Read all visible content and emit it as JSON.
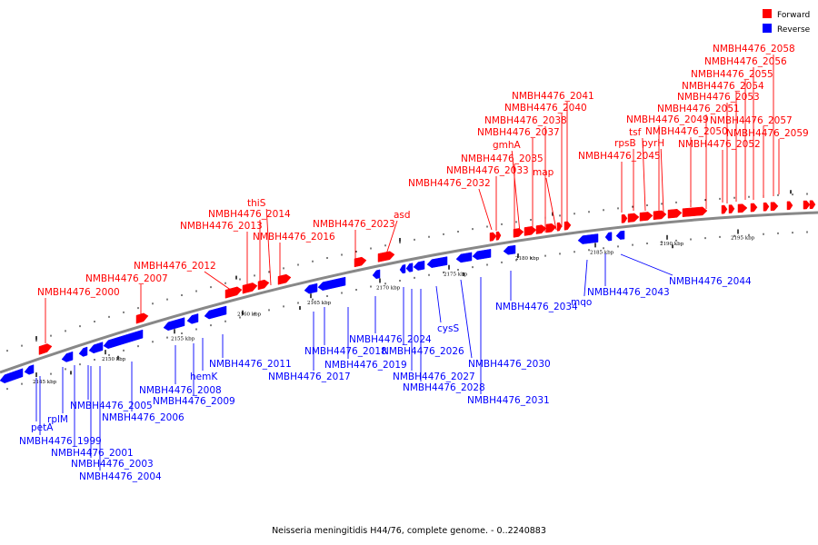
{
  "legend": [
    {
      "name": "Forward",
      "color": "#ff0000"
    },
    {
      "name": "Reverse",
      "color": "#0000ff"
    }
  ],
  "colors": {
    "forward": "#ff0000",
    "reverse": "#0000ff",
    "backbone": "#888888"
  },
  "caption": "Neisseria meningitidis H44/76, complete genome. - 0..2240883",
  "tick_labels": [
    "2145 kbp",
    "2150 kbp",
    "2155 kbp",
    "2160 kbp",
    "2165 kbp",
    "2170 kbp",
    "2175 kbp",
    "2180 kbp",
    "2185 kbp",
    "2190 kbp",
    "2195 kbp"
  ],
  "forward_labels": [
    "NMBH4476_2000",
    "NMBH4476_2007",
    "NMBH4476_2012",
    "NMBH4476_2013",
    "NMBH4476_2014",
    "thiS",
    "NMBH4476_2016",
    "NMBH4476_2023",
    "asd",
    "NMBH4476_2032",
    "NMBH4476_2033",
    "NMBH4476_2035",
    "gmhA",
    "NMBH4476_2037",
    "NMBH4476_2038",
    "map",
    "NMBH4476_2040",
    "NMBH4476_2041",
    "NMBH4476_2045",
    "rpsB",
    "tsf",
    "NMBH4476_2049",
    "pyrH",
    "NMBH4476_2050",
    "NMBH4476_2051",
    "NMBH4476_2052",
    "NMBH4476_2053",
    "NMBH4476_2054",
    "NMBH4476_2055",
    "NMBH4476_2056",
    "NMBH4476_2057",
    "NMBH4476_2058",
    "NMBH4476_2059"
  ],
  "reverse_labels": [
    "petA",
    "NMBH4476_1999",
    "rplM",
    "NMBH4476_2001",
    "NMBH4476_2003",
    "NMBH4476_2004",
    "NMBH4476_2005",
    "NMBH4476_2006",
    "NMBH4476_2008",
    "NMBH4476_2009",
    "hemK",
    "NMBH4476_2011",
    "NMBH4476_2017",
    "NMBH4476_2018",
    "NMBH4476_2019",
    "NMBH4476_2024",
    "NMBH4476_2026",
    "cysS",
    "NMBH4476_2027",
    "NMBH4476_2028",
    "NMBH4476_2030",
    "NMBH4476_2031",
    "NMBH4476_2034",
    "mqo",
    "NMBH4476_2043",
    "NMBH4476_2044"
  ]
}
